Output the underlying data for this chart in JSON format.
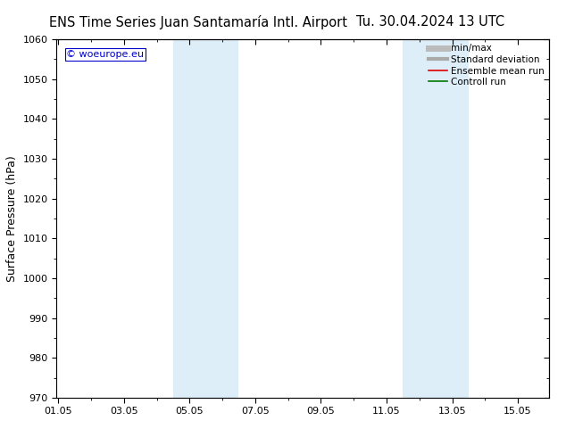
{
  "title_left": "ENS Time Series Juan Santamaría Intl. Airport",
  "title_right": "Tu. 30.04.2024 13 UTC",
  "ylabel": "Surface Pressure (hPa)",
  "ylim": [
    970,
    1060
  ],
  "yticks": [
    970,
    980,
    990,
    1000,
    1010,
    1020,
    1030,
    1040,
    1050,
    1060
  ],
  "xtick_labels": [
    "01.05",
    "03.05",
    "05.05",
    "07.05",
    "09.05",
    "11.05",
    "13.05",
    "15.05"
  ],
  "xtick_positions": [
    0,
    2,
    4,
    6,
    8,
    10,
    12,
    14
  ],
  "xlim": [
    -0.05,
    14.95
  ],
  "shaded_bands": [
    {
      "x_start": 3.5,
      "x_end": 5.5,
      "color": "#ddeef8"
    },
    {
      "x_start": 10.5,
      "x_end": 12.5,
      "color": "#ddeef8"
    }
  ],
  "background_color": "#ffffff",
  "plot_bg_color": "#ffffff",
  "watermark_text": "© woeurope.eu",
  "watermark_color": "#0000cc",
  "legend_items": [
    {
      "label": "min/max",
      "color": "#bbbbbb",
      "lw": 5,
      "style": "solid"
    },
    {
      "label": "Standard deviation",
      "color": "#aaaaaa",
      "lw": 3,
      "style": "solid"
    },
    {
      "label": "Ensemble mean run",
      "color": "#dd0000",
      "lw": 1.2,
      "style": "solid"
    },
    {
      "label": "Controll run",
      "color": "#007700",
      "lw": 1.2,
      "style": "solid"
    }
  ],
  "title_fontsize": 10.5,
  "tick_fontsize": 8,
  "ylabel_fontsize": 9,
  "legend_fontsize": 7.5
}
